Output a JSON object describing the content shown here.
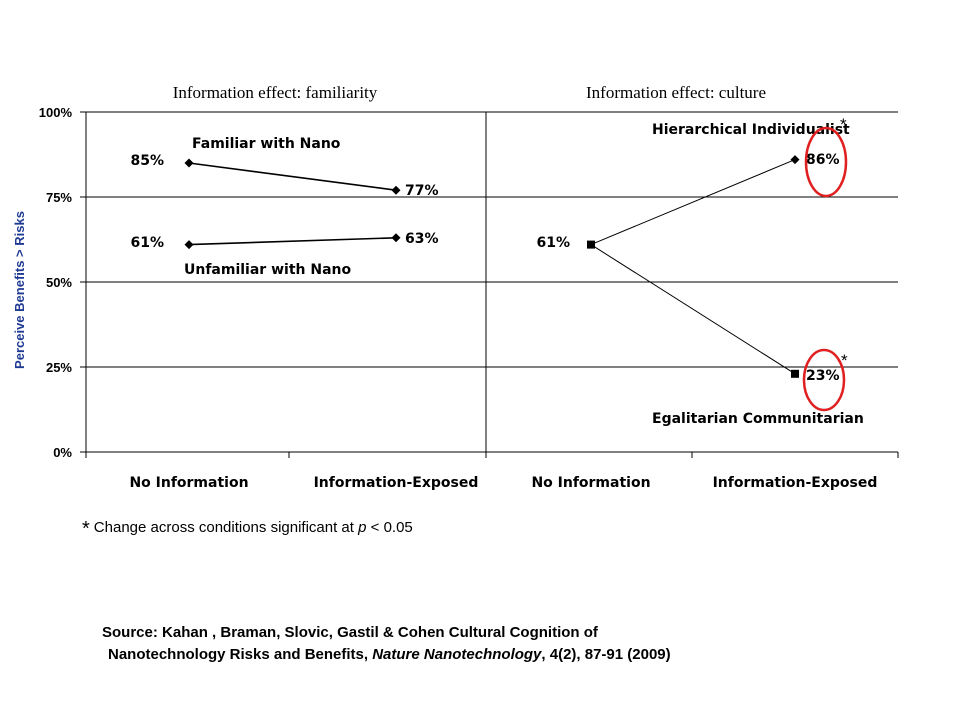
{
  "chart_data": [
    {
      "type": "line",
      "title": "Information effect: familiarity",
      "ylabel": "Perceive Benefits > Risks",
      "categories": [
        "No Information",
        "Information-Exposed"
      ],
      "yticks": [
        "0%",
        "25%",
        "50%",
        "75%",
        "100%"
      ],
      "ylim": [
        0,
        100
      ],
      "grid": true,
      "series": [
        {
          "name": "Familiar with Nano",
          "values": [
            85,
            77
          ],
          "labels": [
            "85%",
            "77%"
          ],
          "marker": "diamond"
        },
        {
          "name": "Unfamiliar with Nano",
          "values": [
            61,
            63
          ],
          "labels": [
            "61%",
            "63%"
          ],
          "marker": "diamond"
        }
      ]
    },
    {
      "type": "line",
      "title": "Information effect: culture",
      "categories": [
        "No Information",
        "Information-Exposed"
      ],
      "ylim": [
        0,
        100
      ],
      "grid": true,
      "start_label": "61%",
      "series": [
        {
          "name": "Hierarchical Individualist",
          "values": [
            61,
            86
          ],
          "labels": [
            "",
            "86%"
          ],
          "significance": "*"
        },
        {
          "name": "Egalitarian Communitarian",
          "values": [
            61,
            23
          ],
          "labels": [
            "",
            "23%"
          ],
          "significance": "*"
        }
      ]
    }
  ],
  "footnote": {
    "star": "*",
    "pre": "Change across conditions significant at ",
    "p": "p",
    "post": " < 0.05"
  },
  "source": {
    "line1": "Source: Kahan , Braman, Slovic, Gastil & Cohen Cultural Cognition of",
    "line2_pre": "Nanotechnology Risks and Benefits, ",
    "journal": "Nature Nanotechnology",
    "line2_post": ", 4(2), 87-91 (2009)"
  },
  "colors": {
    "axis_label": "#1f3a93",
    "highlight": "#e02020",
    "line": "#000000",
    "grid": "#000000"
  }
}
